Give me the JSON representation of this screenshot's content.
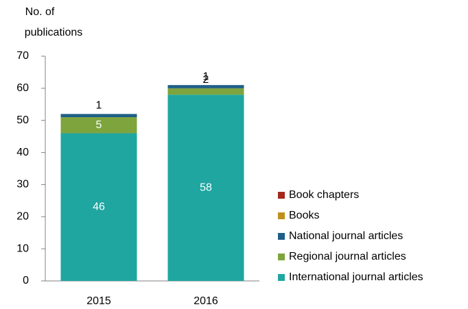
{
  "chart_data": {
    "type": "stacked_bar",
    "ylabel": [
      "No. of",
      "publications"
    ],
    "categories": [
      "2015",
      "2016"
    ],
    "series": [
      {
        "name": "International journal articles",
        "color": "#1fa6a1",
        "values": [
          46,
          58
        ]
      },
      {
        "name": "Regional journal articles",
        "color": "#7ea43e",
        "values": [
          5,
          2
        ]
      },
      {
        "name": "National journal articles",
        "color": "#1f5f87",
        "values": [
          1,
          1
        ]
      },
      {
        "name": "Books",
        "color": "#c0901f",
        "values": [
          0,
          0
        ]
      },
      {
        "name": "Book chapters",
        "color": "#a3281e",
        "values": [
          0,
          0
        ]
      }
    ],
    "ylim": [
      0,
      70
    ],
    "yticks": [
      0,
      10,
      20,
      30,
      40,
      50,
      60,
      70
    ],
    "grid": false,
    "legend": "right"
  }
}
